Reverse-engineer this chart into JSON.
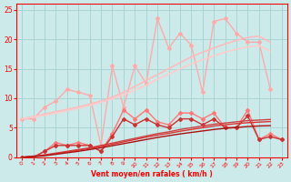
{
  "xlabel": "Vent moyen/en rafales ( km/h )",
  "bg_color": "#cceaea",
  "grid_color": "#aad4d4",
  "x_values": [
    0,
    1,
    2,
    3,
    4,
    5,
    6,
    7,
    8,
    9,
    10,
    11,
    12,
    13,
    14,
    15,
    16,
    17,
    18,
    19,
    20,
    21,
    22,
    23
  ],
  "lines": [
    {
      "color": "#ffaaaa",
      "lw": 1.0,
      "marker": "D",
      "ms": 2.0,
      "y": [
        6.5,
        6.5,
        8.5,
        9.5,
        11.5,
        11.0,
        10.5,
        2.0,
        15.5,
        8.5,
        15.5,
        12.5,
        23.5,
        18.5,
        21.0,
        19.0,
        11.0,
        23.0,
        23.5,
        21.0,
        19.5,
        19.5,
        11.5,
        null
      ]
    },
    {
      "color": "#ffbbbb",
      "lw": 1.2,
      "marker": null,
      "ms": 0,
      "y": [
        6.5,
        6.9,
        7.3,
        7.7,
        8.1,
        8.5,
        9.0,
        9.5,
        10.2,
        11.0,
        12.0,
        13.0,
        14.0,
        15.0,
        16.0,
        17.0,
        17.8,
        18.5,
        19.2,
        19.8,
        20.3,
        20.5,
        19.5,
        null
      ]
    },
    {
      "color": "#ffcccc",
      "lw": 1.2,
      "marker": null,
      "ms": 0,
      "y": [
        6.5,
        6.8,
        7.1,
        7.5,
        7.9,
        8.3,
        8.8,
        9.3,
        9.9,
        10.6,
        11.4,
        12.2,
        13.2,
        14.1,
        15.0,
        15.8,
        16.5,
        17.2,
        17.8,
        18.3,
        18.7,
        18.9,
        18.0,
        null
      ]
    },
    {
      "color": "#ff7777",
      "lw": 1.0,
      "marker": "D",
      "ms": 2.0,
      "y": [
        0.0,
        0.0,
        1.0,
        2.5,
        2.0,
        2.5,
        2.0,
        1.0,
        4.0,
        8.0,
        6.5,
        8.0,
        6.0,
        5.5,
        7.5,
        7.5,
        6.5,
        7.5,
        5.0,
        5.0,
        8.0,
        3.0,
        4.0,
        3.0
      ]
    },
    {
      "color": "#cc3333",
      "lw": 1.0,
      "marker": "D",
      "ms": 2.0,
      "y": [
        0.0,
        0.0,
        1.0,
        2.0,
        2.0,
        2.0,
        2.0,
        1.0,
        3.5,
        6.5,
        5.5,
        6.5,
        5.5,
        5.0,
        6.5,
        6.5,
        5.5,
        6.5,
        5.0,
        5.0,
        7.0,
        3.0,
        3.5,
        3.0
      ]
    },
    {
      "color": "#cc4444",
      "lw": 1.0,
      "marker": null,
      "ms": 0,
      "y": [
        0.0,
        0.2,
        0.4,
        0.7,
        1.0,
        1.3,
        1.6,
        2.0,
        2.4,
        2.8,
        3.2,
        3.6,
        4.0,
        4.3,
        4.7,
        5.0,
        5.3,
        5.6,
        5.8,
        6.0,
        6.2,
        6.3,
        6.4,
        null
      ]
    },
    {
      "color": "#dd3333",
      "lw": 1.0,
      "marker": null,
      "ms": 0,
      "y": [
        0.0,
        0.15,
        0.35,
        0.6,
        0.9,
        1.2,
        1.5,
        1.85,
        2.2,
        2.6,
        3.0,
        3.4,
        3.75,
        4.05,
        4.4,
        4.7,
        5.0,
        5.3,
        5.5,
        5.7,
        5.85,
        5.95,
        6.05,
        null
      ]
    },
    {
      "color": "#aa1111",
      "lw": 1.0,
      "marker": null,
      "ms": 0,
      "y": [
        0.0,
        0.1,
        0.25,
        0.5,
        0.75,
        1.0,
        1.3,
        1.6,
        1.95,
        2.3,
        2.65,
        3.0,
        3.35,
        3.65,
        3.95,
        4.2,
        4.45,
        4.7,
        4.9,
        5.05,
        5.2,
        5.3,
        5.35,
        null
      ]
    }
  ],
  "ylim": [
    0,
    26
  ],
  "xlim": [
    -0.5,
    23.5
  ],
  "yticks": [
    0,
    5,
    10,
    15,
    20,
    25
  ],
  "xticks": [
    0,
    1,
    2,
    3,
    4,
    5,
    6,
    7,
    8,
    9,
    10,
    11,
    12,
    13,
    14,
    15,
    16,
    17,
    18,
    19,
    20,
    21,
    22,
    23
  ],
  "xlabel_fontsize": 5.5,
  "ytick_fontsize": 5.5,
  "xtick_fontsize": 4.5
}
